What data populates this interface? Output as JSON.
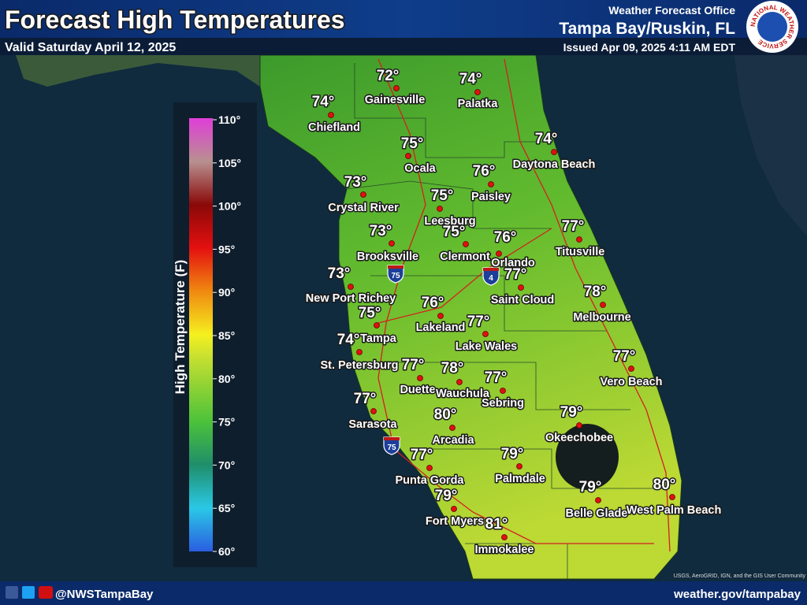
{
  "header": {
    "title": "Forecast High Temperatures",
    "valid": "Valid Saturday April 12, 2025",
    "office_label": "Weather Forecast Office",
    "office": "Tampa Bay/Ruskin, FL",
    "issued": "Issued Apr 09, 2025 4:11 AM EDT",
    "logo_text": "NATIONAL WEATHER SERVICE"
  },
  "legend": {
    "title": "High Temperature (F)",
    "ticks": [
      "110°",
      "105°",
      "100°",
      "95°",
      "90°",
      "85°",
      "80°",
      "75°",
      "70°",
      "65°",
      "60°"
    ]
  },
  "shields": [
    "75",
    "4",
    "75"
  ],
  "cities": [
    {
      "name": "Gainesville",
      "temp": "72°"
    },
    {
      "name": "Palatka",
      "temp": "74°"
    },
    {
      "name": "Chiefland",
      "temp": "74°"
    },
    {
      "name": "Ocala",
      "temp": "75°"
    },
    {
      "name": "Daytona Beach",
      "temp": "74°"
    },
    {
      "name": "Paisley",
      "temp": "76°"
    },
    {
      "name": "Crystal River",
      "temp": "73°"
    },
    {
      "name": "Leesburg",
      "temp": "75°"
    },
    {
      "name": "Titusville",
      "temp": "77°"
    },
    {
      "name": "Brooksville",
      "temp": "73°"
    },
    {
      "name": "Clermont",
      "temp": "75°"
    },
    {
      "name": "Orlando",
      "temp": "76°"
    },
    {
      "name": "New Port Richey",
      "temp": "73°"
    },
    {
      "name": "Saint Cloud",
      "temp": "77°"
    },
    {
      "name": "Melbourne",
      "temp": "78°"
    },
    {
      "name": "Lakeland",
      "temp": "76°"
    },
    {
      "name": "Tampa",
      "temp": "75°"
    },
    {
      "name": "Lake Wales",
      "temp": "77°"
    },
    {
      "name": "St. Petersburg",
      "temp": "74°"
    },
    {
      "name": "Vero Beach",
      "temp": "77°"
    },
    {
      "name": "Duette",
      "temp": "77°"
    },
    {
      "name": "Wauchula",
      "temp": "78°"
    },
    {
      "name": "Sebring",
      "temp": "77°"
    },
    {
      "name": "Sarasota",
      "temp": "77°"
    },
    {
      "name": "Okeechobee",
      "temp": "79°"
    },
    {
      "name": "Arcadia",
      "temp": "80°"
    },
    {
      "name": "Punta Gorda",
      "temp": "77°"
    },
    {
      "name": "Palmdale",
      "temp": "79°"
    },
    {
      "name": "Belle Glade",
      "temp": "79°"
    },
    {
      "name": "West Palm Beach",
      "temp": "80°"
    },
    {
      "name": "Fort Myers",
      "temp": "79°"
    },
    {
      "name": "Immokalee",
      "temp": "81°"
    }
  ],
  "attribution": "USGS, AeroGRID, IGN, and the GIS User Community",
  "footer": {
    "handle": "@NWSTampaBay",
    "url": "weather.gov/tampabay"
  }
}
